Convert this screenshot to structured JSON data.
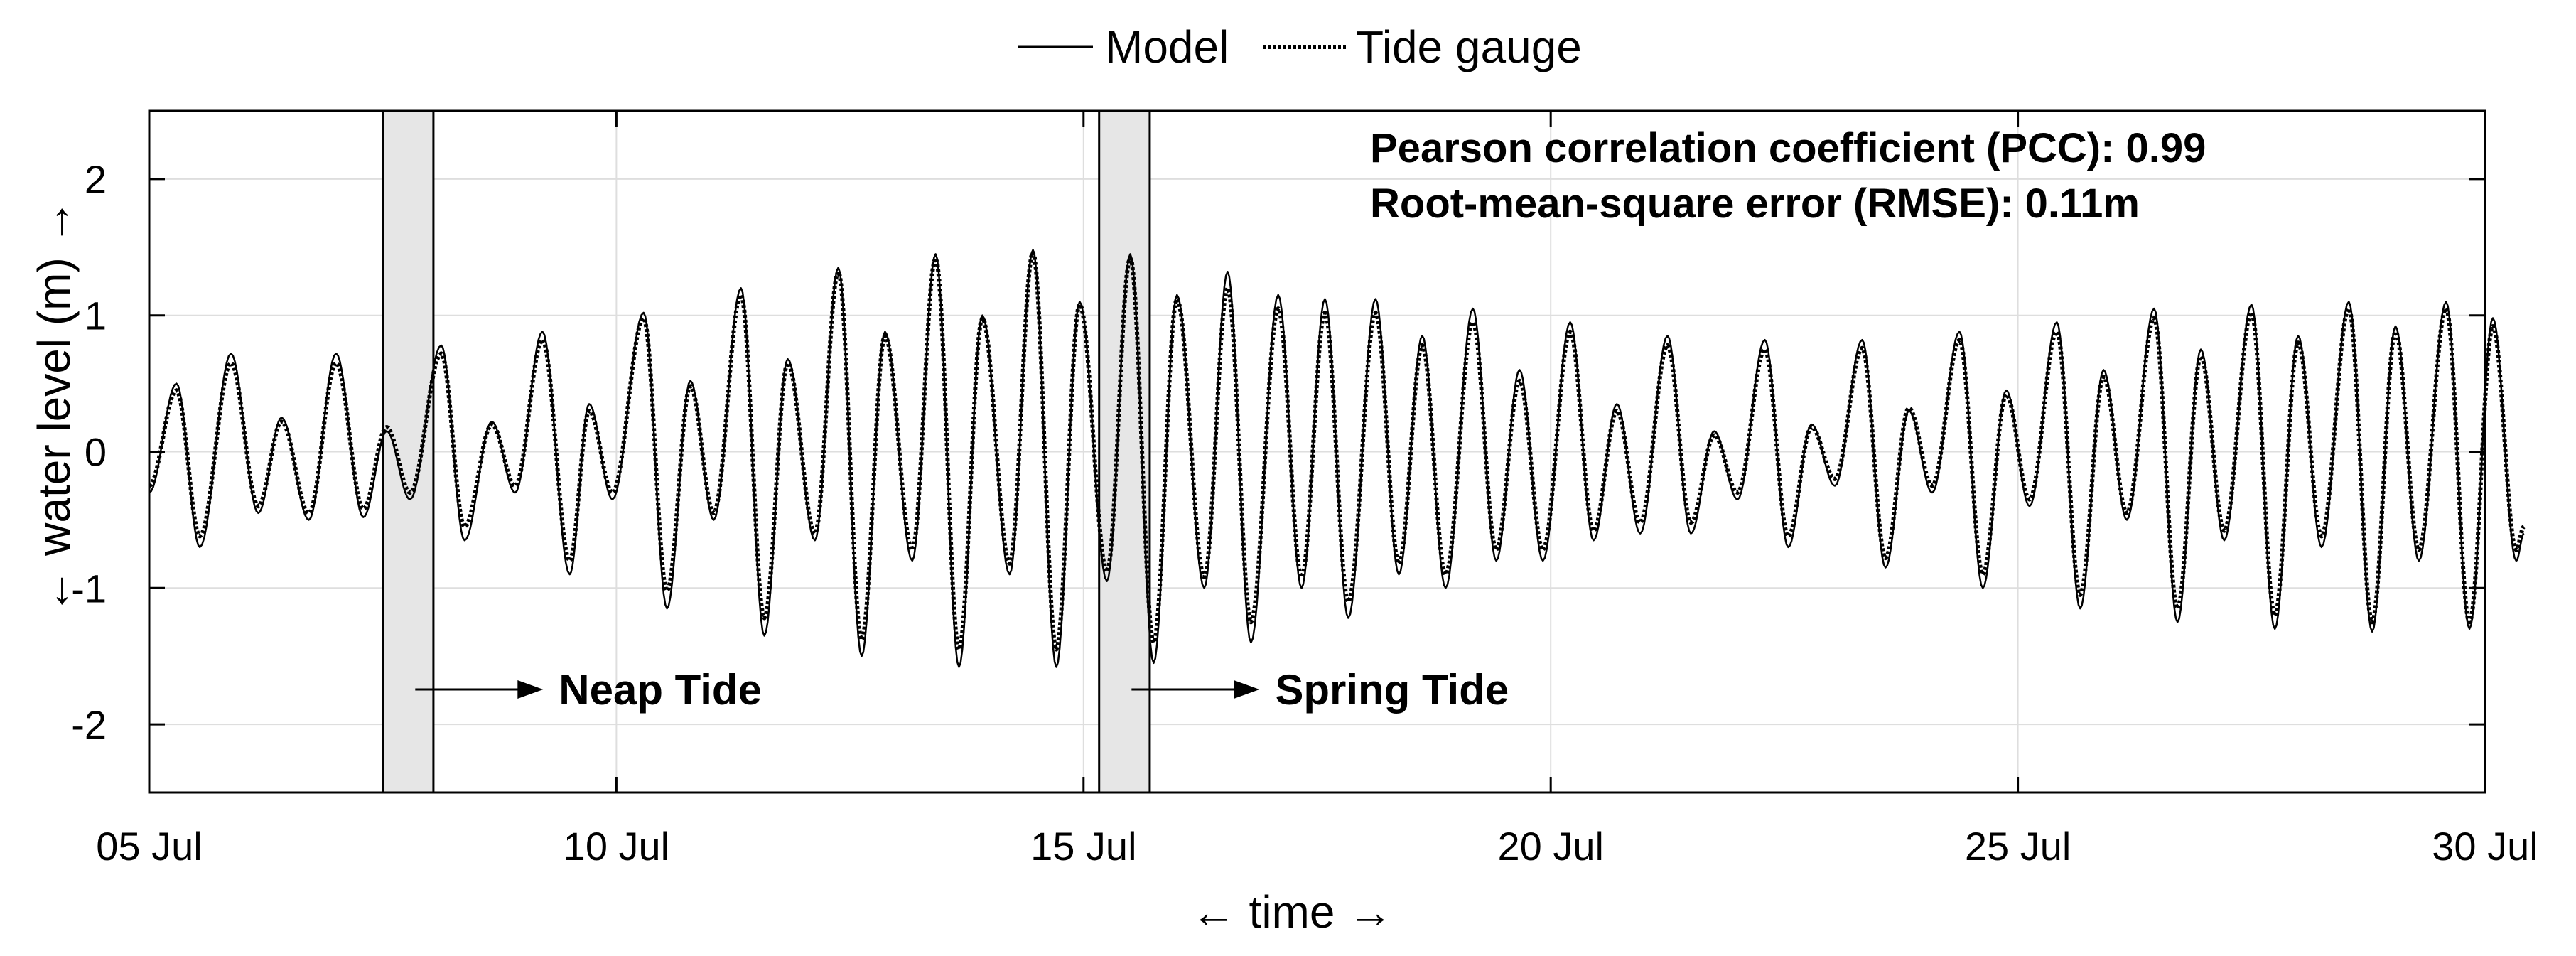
{
  "chart_data": {
    "type": "line",
    "xlabel": "← time →",
    "ylabel": "← water level (m) →",
    "x_domain": [
      "2024-07-05",
      "2024-07-30"
    ],
    "ylim": [
      -2.5,
      2.5
    ],
    "x_ticks": [
      {
        "date": "2024-07-05",
        "label": "05 Jul"
      },
      {
        "date": "2024-07-10",
        "label": "10 Jul"
      },
      {
        "date": "2024-07-15",
        "label": "15 Jul"
      },
      {
        "date": "2024-07-20",
        "label": "20 Jul"
      },
      {
        "date": "2024-07-25",
        "label": "25 Jul"
      },
      {
        "date": "2024-07-30",
        "label": "30 Jul"
      }
    ],
    "y_ticks": [
      -2,
      -1,
      0,
      1,
      2
    ],
    "grid": true,
    "legend": {
      "position": "top-center-outside",
      "entries": [
        "Model",
        "Tide gauge"
      ]
    },
    "series": [
      {
        "name": "Model",
        "style": "solid",
        "extrema": [
          [
            "2024-07-05 00:00",
            -0.3
          ],
          [
            "2024-07-05 07:00",
            0.5
          ],
          [
            "2024-07-05 13:00",
            -0.7
          ],
          [
            "2024-07-05 21:00",
            0.72
          ],
          [
            "2024-07-06 04:00",
            -0.45
          ],
          [
            "2024-07-06 10:00",
            0.25
          ],
          [
            "2024-07-06 17:00",
            -0.5
          ],
          [
            "2024-07-07 00:00",
            0.72
          ],
          [
            "2024-07-07 07:00",
            -0.48
          ],
          [
            "2024-07-07 13:00",
            0.15
          ],
          [
            "2024-07-07 19:00",
            -0.35
          ],
          [
            "2024-07-08 03:00",
            0.78
          ],
          [
            "2024-07-08 09:00",
            -0.65
          ],
          [
            "2024-07-08 16:00",
            0.22
          ],
          [
            "2024-07-08 22:00",
            -0.3
          ],
          [
            "2024-07-09 05:00",
            0.88
          ],
          [
            "2024-07-09 12:00",
            -0.9
          ],
          [
            "2024-07-09 17:00",
            0.35
          ],
          [
            "2024-07-09 23:00",
            -0.35
          ],
          [
            "2024-07-10 07:00",
            1.02
          ],
          [
            "2024-07-10 13:00",
            -1.15
          ],
          [
            "2024-07-10 19:00",
            0.52
          ],
          [
            "2024-07-11 01:00",
            -0.5
          ],
          [
            "2024-07-11 08:00",
            1.2
          ],
          [
            "2024-07-11 14:00",
            -1.35
          ],
          [
            "2024-07-11 20:00",
            0.68
          ],
          [
            "2024-07-12 03:00",
            -0.65
          ],
          [
            "2024-07-12 09:00",
            1.35
          ],
          [
            "2024-07-12 15:00",
            -1.5
          ],
          [
            "2024-07-12 21:00",
            0.88
          ],
          [
            "2024-07-13 04:00",
            -0.8
          ],
          [
            "2024-07-13 10:00",
            1.45
          ],
          [
            "2024-07-13 16:00",
            -1.58
          ],
          [
            "2024-07-13 22:00",
            1.0
          ],
          [
            "2024-07-14 05:00",
            -0.9
          ],
          [
            "2024-07-14 11:00",
            1.48
          ],
          [
            "2024-07-14 17:00",
            -1.58
          ],
          [
            "2024-07-14 23:00",
            1.1
          ],
          [
            "2024-07-15 06:00",
            -0.95
          ],
          [
            "2024-07-15 12:00",
            1.45
          ],
          [
            "2024-07-15 18:00",
            -1.55
          ],
          [
            "2024-07-16 00:00",
            1.15
          ],
          [
            "2024-07-16 07:00",
            -1.0
          ],
          [
            "2024-07-16 13:00",
            1.32
          ],
          [
            "2024-07-16 19:00",
            -1.4
          ],
          [
            "2024-07-17 02:00",
            1.15
          ],
          [
            "2024-07-17 08:00",
            -1.0
          ],
          [
            "2024-07-17 14:00",
            1.12
          ],
          [
            "2024-07-17 20:00",
            -1.22
          ],
          [
            "2024-07-18 03:00",
            1.12
          ],
          [
            "2024-07-18 09:00",
            -0.9
          ],
          [
            "2024-07-18 15:00",
            0.85
          ],
          [
            "2024-07-18 21:00",
            -1.0
          ],
          [
            "2024-07-19 04:00",
            1.05
          ],
          [
            "2024-07-19 10:00",
            -0.8
          ],
          [
            "2024-07-19 16:00",
            0.6
          ],
          [
            "2024-07-19 22:00",
            -0.8
          ],
          [
            "2024-07-20 05:00",
            0.95
          ],
          [
            "2024-07-20 11:00",
            -0.65
          ],
          [
            "2024-07-20 17:00",
            0.35
          ],
          [
            "2024-07-20 23:00",
            -0.6
          ],
          [
            "2024-07-21 06:00",
            0.85
          ],
          [
            "2024-07-21 12:00",
            -0.6
          ],
          [
            "2024-07-21 18:00",
            0.15
          ],
          [
            "2024-07-22 00:00",
            -0.35
          ],
          [
            "2024-07-22 07:00",
            0.82
          ],
          [
            "2024-07-22 13:00",
            -0.7
          ],
          [
            "2024-07-22 19:00",
            0.2
          ],
          [
            "2024-07-23 01:00",
            -0.25
          ],
          [
            "2024-07-23 08:00",
            0.82
          ],
          [
            "2024-07-23 14:00",
            -0.85
          ],
          [
            "2024-07-23 20:00",
            0.3
          ],
          [
            "2024-07-24 02:00",
            -0.3
          ],
          [
            "2024-07-24 09:00",
            0.88
          ],
          [
            "2024-07-24 15:00",
            -1.0
          ],
          [
            "2024-07-24 21:00",
            0.45
          ],
          [
            "2024-07-25 03:00",
            -0.4
          ],
          [
            "2024-07-25 10:00",
            0.95
          ],
          [
            "2024-07-25 16:00",
            -1.15
          ],
          [
            "2024-07-25 22:00",
            0.6
          ],
          [
            "2024-07-26 04:00",
            -0.5
          ],
          [
            "2024-07-26 11:00",
            1.05
          ],
          [
            "2024-07-26 17:00",
            -1.25
          ],
          [
            "2024-07-26 23:00",
            0.75
          ],
          [
            "2024-07-27 05:00",
            -0.65
          ],
          [
            "2024-07-27 12:00",
            1.08
          ],
          [
            "2024-07-27 18:00",
            -1.3
          ],
          [
            "2024-07-28 00:00",
            0.85
          ],
          [
            "2024-07-28 06:00",
            -0.7
          ],
          [
            "2024-07-28 13:00",
            1.1
          ],
          [
            "2024-07-28 19:00",
            -1.32
          ],
          [
            "2024-07-29 01:00",
            0.92
          ],
          [
            "2024-07-29 07:00",
            -0.8
          ],
          [
            "2024-07-29 14:00",
            1.1
          ],
          [
            "2024-07-29 20:00",
            -1.3
          ],
          [
            "2024-07-30 02:00",
            0.98
          ],
          [
            "2024-07-30 08:00",
            -0.8
          ],
          [
            "2024-07-30 10:00",
            -0.6
          ]
        ]
      },
      {
        "name": "Tide gauge",
        "style": "dotted",
        "extrema": [
          [
            "2024-07-05 00:00",
            -0.25
          ],
          [
            "2024-07-05 07:00",
            0.45
          ],
          [
            "2024-07-05 13:00",
            -0.62
          ],
          [
            "2024-07-05 21:00",
            0.65
          ],
          [
            "2024-07-06 04:00",
            -0.4
          ],
          [
            "2024-07-06 10:00",
            0.22
          ],
          [
            "2024-07-06 17:00",
            -0.45
          ],
          [
            "2024-07-07 00:00",
            0.65
          ],
          [
            "2024-07-07 07:00",
            -0.42
          ],
          [
            "2024-07-07 13:00",
            0.18
          ],
          [
            "2024-07-07 19:00",
            -0.3
          ],
          [
            "2024-07-08 03:00",
            0.72
          ],
          [
            "2024-07-08 09:00",
            -0.55
          ],
          [
            "2024-07-08 16:00",
            0.2
          ],
          [
            "2024-07-08 22:00",
            -0.25
          ],
          [
            "2024-07-09 05:00",
            0.82
          ],
          [
            "2024-07-09 12:00",
            -0.8
          ],
          [
            "2024-07-09 17:00",
            0.3
          ],
          [
            "2024-07-09 23:00",
            -0.3
          ],
          [
            "2024-07-10 07:00",
            0.98
          ],
          [
            "2024-07-10 13:00",
            -1.02
          ],
          [
            "2024-07-10 19:00",
            0.48
          ],
          [
            "2024-07-11 01:00",
            -0.45
          ],
          [
            "2024-07-11 08:00",
            1.15
          ],
          [
            "2024-07-11 14:00",
            -1.22
          ],
          [
            "2024-07-11 20:00",
            0.65
          ],
          [
            "2024-07-12 03:00",
            -0.6
          ],
          [
            "2024-07-12 09:00",
            1.32
          ],
          [
            "2024-07-12 15:00",
            -1.38
          ],
          [
            "2024-07-12 21:00",
            0.85
          ],
          [
            "2024-07-13 04:00",
            -0.72
          ],
          [
            "2024-07-13 10:00",
            1.42
          ],
          [
            "2024-07-13 16:00",
            -1.45
          ],
          [
            "2024-07-13 22:00",
            0.98
          ],
          [
            "2024-07-14 05:00",
            -0.82
          ],
          [
            "2024-07-14 11:00",
            1.46
          ],
          [
            "2024-07-14 17:00",
            -1.45
          ],
          [
            "2024-07-14 23:00",
            1.08
          ],
          [
            "2024-07-15 06:00",
            -0.88
          ],
          [
            "2024-07-15 12:00",
            1.42
          ],
          [
            "2024-07-15 18:00",
            -1.4
          ],
          [
            "2024-07-16 00:00",
            1.12
          ],
          [
            "2024-07-16 07:00",
            -0.92
          ],
          [
            "2024-07-16 13:00",
            1.2
          ],
          [
            "2024-07-16 19:00",
            -1.25
          ],
          [
            "2024-07-17 02:00",
            1.05
          ],
          [
            "2024-07-17 08:00",
            -0.92
          ],
          [
            "2024-07-17 14:00",
            1.02
          ],
          [
            "2024-07-17 20:00",
            -1.1
          ],
          [
            "2024-07-18 03:00",
            1.02
          ],
          [
            "2024-07-18 09:00",
            -0.82
          ],
          [
            "2024-07-18 15:00",
            0.78
          ],
          [
            "2024-07-18 21:00",
            -0.9
          ],
          [
            "2024-07-19 04:00",
            0.95
          ],
          [
            "2024-07-19 10:00",
            -0.72
          ],
          [
            "2024-07-19 16:00",
            0.52
          ],
          [
            "2024-07-19 22:00",
            -0.72
          ],
          [
            "2024-07-20 05:00",
            0.88
          ],
          [
            "2024-07-20 11:00",
            -0.58
          ],
          [
            "2024-07-20 17:00",
            0.3
          ],
          [
            "2024-07-20 23:00",
            -0.52
          ],
          [
            "2024-07-21 06:00",
            0.78
          ],
          [
            "2024-07-21 12:00",
            -0.52
          ],
          [
            "2024-07-21 18:00",
            0.12
          ],
          [
            "2024-07-22 00:00",
            -0.3
          ],
          [
            "2024-07-22 07:00",
            0.75
          ],
          [
            "2024-07-22 13:00",
            -0.62
          ],
          [
            "2024-07-22 19:00",
            0.18
          ],
          [
            "2024-07-23 01:00",
            -0.2
          ],
          [
            "2024-07-23 08:00",
            0.76
          ],
          [
            "2024-07-23 14:00",
            -0.78
          ],
          [
            "2024-07-23 20:00",
            0.32
          ],
          [
            "2024-07-24 02:00",
            -0.25
          ],
          [
            "2024-07-24 09:00",
            0.82
          ],
          [
            "2024-07-24 15:00",
            -0.9
          ],
          [
            "2024-07-24 21:00",
            0.42
          ],
          [
            "2024-07-25 03:00",
            -0.35
          ],
          [
            "2024-07-25 10:00",
            0.88
          ],
          [
            "2024-07-25 16:00",
            -1.05
          ],
          [
            "2024-07-25 22:00",
            0.55
          ],
          [
            "2024-07-26 04:00",
            -0.45
          ],
          [
            "2024-07-26 11:00",
            0.98
          ],
          [
            "2024-07-26 17:00",
            -1.15
          ],
          [
            "2024-07-26 23:00",
            0.7
          ],
          [
            "2024-07-27 05:00",
            -0.58
          ],
          [
            "2024-07-27 12:00",
            1.02
          ],
          [
            "2024-07-27 18:00",
            -1.2
          ],
          [
            "2024-07-28 00:00",
            0.8
          ],
          [
            "2024-07-28 06:00",
            -0.62
          ],
          [
            "2024-07-28 13:00",
            1.05
          ],
          [
            "2024-07-28 19:00",
            -1.25
          ],
          [
            "2024-07-29 01:00",
            0.88
          ],
          [
            "2024-07-29 07:00",
            -0.72
          ],
          [
            "2024-07-29 14:00",
            1.05
          ],
          [
            "2024-07-29 20:00",
            -1.25
          ],
          [
            "2024-07-30 02:00",
            0.92
          ],
          [
            "2024-07-30 08:00",
            -0.72
          ],
          [
            "2024-07-30 10:00",
            -0.55
          ]
        ]
      }
    ],
    "highlight_bands": [
      {
        "start": "2024-07-07 12:00",
        "end": "2024-07-08 01:00",
        "label": "Neap Tide"
      },
      {
        "start": "2024-07-15 04:00",
        "end": "2024-07-15 17:00",
        "label": "Spring Tide"
      }
    ],
    "annotations": [
      "Pearson correlation coefficient (PCC): 0.99",
      "Root-mean-square error (RMSE): 0.11m"
    ]
  },
  "colors": {
    "background": "#ffffff",
    "axes": "#000000",
    "grid": "#dedede",
    "band_fill": "#e6e6e6",
    "band_stroke": "#000000",
    "line": "#000000"
  }
}
